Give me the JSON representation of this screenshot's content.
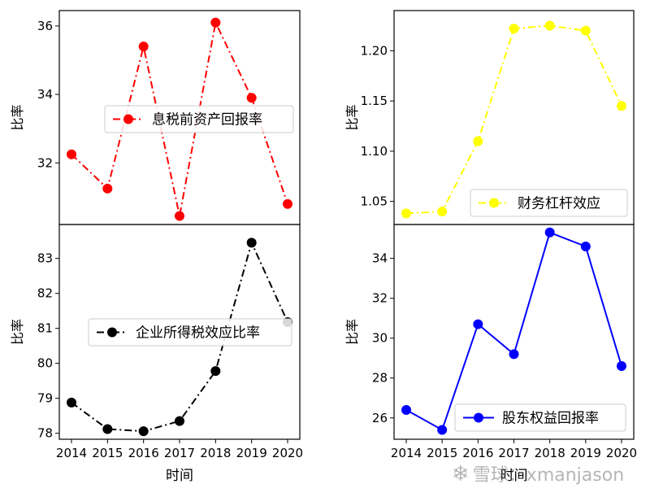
{
  "chart_data": [
    {
      "type": "line",
      "x": [
        2014,
        2015,
        2016,
        2017,
        2018,
        2019,
        2020
      ],
      "series": [
        {
          "name": "息税前资产回报率",
          "values": [
            32.25,
            31.25,
            35.4,
            30.45,
            36.1,
            33.9,
            30.8
          ],
          "color": "#ff0000",
          "linestyle": "dashdot",
          "marker": "circle"
        }
      ],
      "xlabel": "",
      "ylabel": "比率",
      "ylim": [
        30.2,
        36.45
      ],
      "yticks": [
        32,
        34,
        36
      ],
      "ytick_labels": [
        "32",
        "34",
        "36"
      ],
      "legend_position": "right"
    },
    {
      "type": "line",
      "x": [
        2014,
        2015,
        2016,
        2017,
        2018,
        2019,
        2020
      ],
      "series": [
        {
          "name": "财务杠杆效应",
          "values": [
            1.038,
            1.04,
            1.11,
            1.222,
            1.225,
            1.22,
            1.145
          ],
          "color": "#ffff00",
          "linestyle": "dashdot",
          "marker": "circle"
        }
      ],
      "xlabel": "",
      "ylabel": "比率",
      "ylim": [
        1.027,
        1.24
      ],
      "yticks": [
        1.05,
        1.1,
        1.15,
        1.2
      ],
      "ytick_labels": [
        "1.05",
        "1.10",
        "1.15",
        "1.20"
      ],
      "legend_position": "lower right"
    },
    {
      "type": "line",
      "x": [
        2014,
        2015,
        2016,
        2017,
        2018,
        2019,
        2020
      ],
      "series": [
        {
          "name": "企业所得税效应比率",
          "values": [
            78.88,
            78.12,
            78.06,
            78.35,
            79.78,
            83.45,
            81.18
          ],
          "color": "#000000",
          "linestyle": "dashdot",
          "marker": "circle"
        }
      ],
      "xlabel": "时间",
      "ylabel": "比率",
      "ylim": [
        77.83,
        83.97
      ],
      "yticks": [
        78,
        79,
        80,
        81,
        82,
        83
      ],
      "ytick_labels": [
        "78",
        "79",
        "80",
        "81",
        "82",
        "83"
      ],
      "xtick_labels": [
        "2014",
        "2015",
        "2016",
        "2017",
        "2018",
        "2019",
        "2020"
      ],
      "legend_position": "center right"
    },
    {
      "type": "line",
      "x": [
        2014,
        2015,
        2016,
        2017,
        2018,
        2019,
        2020
      ],
      "series": [
        {
          "name": "股东权益回报率",
          "values": [
            26.4,
            25.4,
            30.7,
            29.2,
            35.3,
            34.6,
            28.6
          ],
          "color": "#0000ff",
          "linestyle": "solid",
          "marker": "circle"
        }
      ],
      "xlabel": "时间",
      "ylabel": "比率",
      "ylim": [
        24.93,
        35.7
      ],
      "yticks": [
        26,
        28,
        30,
        32,
        34
      ],
      "ytick_labels": [
        "26",
        "28",
        "30",
        "32",
        "34"
      ],
      "xtick_labels": [
        "2014",
        "2015",
        "2016",
        "2017",
        "2018",
        "2019",
        "2020"
      ],
      "legend_position": "lower right"
    }
  ],
  "watermark": {
    "text": "雪球：xmanjason",
    "logo": "❄"
  }
}
